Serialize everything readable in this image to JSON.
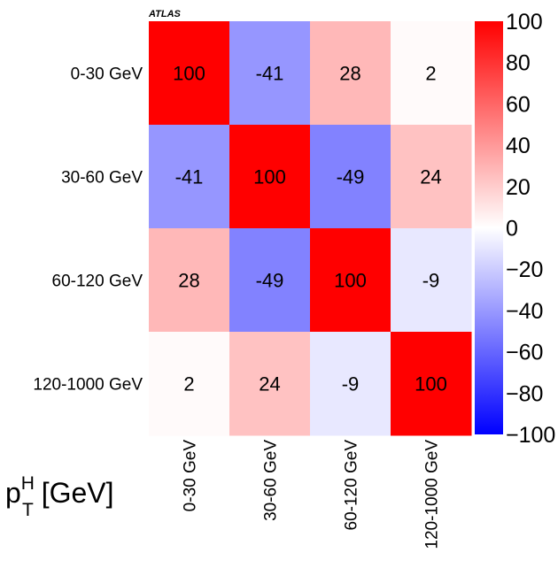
{
  "chart_data": {
    "type": "heatmap",
    "experiment_label": "ATLAS",
    "row_categories": [
      "0-30 GeV",
      "30-60 GeV",
      "60-120 GeV",
      "120-1000 GeV"
    ],
    "col_categories": [
      "0-30 GeV",
      "30-60 GeV",
      "60-120 GeV",
      "120-1000 GeV"
    ],
    "values": [
      [
        100,
        -41,
        28,
        2
      ],
      [
        -41,
        100,
        -49,
        24
      ],
      [
        28,
        -49,
        100,
        -9
      ],
      [
        2,
        24,
        -9,
        100
      ]
    ],
    "value_labels": [
      [
        "100",
        "-41",
        "28",
        "2"
      ],
      [
        "-41",
        "100",
        "-49",
        "24"
      ],
      [
        "28",
        "-49",
        "100",
        "-9"
      ],
      [
        "2",
        "24",
        "-9",
        "100"
      ]
    ],
    "axis_label": {
      "base": "p",
      "sub": "T",
      "sup": "H",
      "unit": " [GeV]"
    },
    "colorbar": {
      "range": [
        -100,
        100
      ],
      "ticks": [
        100,
        80,
        60,
        40,
        20,
        0,
        -20,
        -40,
        -60,
        -80,
        -100
      ],
      "tick_labels": [
        "100",
        "80",
        "60",
        "40",
        "20",
        "0",
        "−20",
        "−40",
        "−60",
        "−80",
        "−100"
      ],
      "low_color": "#0000ff",
      "mid_color": "#ffffff",
      "high_color": "#ff0000"
    }
  }
}
